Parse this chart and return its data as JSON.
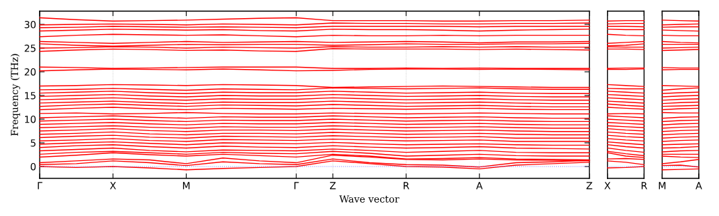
{
  "chart_data": [
    {
      "type": "line",
      "xlabel": "Wave vector",
      "ylabel": "Frequency (THz)",
      "categories": [
        "Γ",
        null,
        "X",
        null,
        "M",
        null,
        null,
        "Γ",
        "Z",
        null,
        "R",
        null,
        "A",
        null,
        null,
        "Z"
      ],
      "ylim": [
        -2.5,
        32.8
      ],
      "yticks": [
        0,
        5,
        10,
        15,
        20,
        25,
        30
      ],
      "grid": "x",
      "ref_lines": [
        {
          "axis": "y",
          "value": 0,
          "color": "#8080ff",
          "line_style": "dotted"
        }
      ],
      "series": [
        {
          "color": "#ff0000",
          "values": [
            0,
            -0.2,
            0,
            -0.3,
            -0.7,
            -0.4,
            -0.2,
            0,
            1.2,
            0.6,
            0,
            -0.1,
            -0.5,
            0.3,
            0.6,
            0.9
          ]
        },
        {
          "color": "#ff0000",
          "values": [
            0.4,
            0.6,
            1.2,
            0.8,
            0.2,
            1.0,
            0.6,
            0.4,
            1.6,
            0.8,
            0.4,
            0.3,
            -0.1,
            0.8,
            1.0,
            1.3
          ]
        },
        {
          "color": "#ff0000",
          "values": [
            0.8,
            1.2,
            1.6,
            1.4,
            0.6,
            1.8,
            1.2,
            0.8,
            2.4,
            2.0,
            1.5,
            1.4,
            1.6,
            1.4,
            1.3,
            1.2
          ]
        },
        {
          "color": "#ff0000",
          "values": [
            2.0,
            2.4,
            2.9,
            2.5,
            2.2,
            2.6,
            2.3,
            2.0,
            2.6,
            2.2,
            1.6,
            1.7,
            1.9,
            1.6,
            1.5,
            1.4
          ]
        },
        {
          "color": "#ff0000",
          "values": [
            2.6,
            3.0,
            3.2,
            2.9,
            2.6,
            3.0,
            2.8,
            2.7,
            3.2,
            2.8,
            2.2,
            2.4,
            2.6,
            2.3,
            2.2,
            2.2
          ]
        },
        {
          "color": "#ff0000",
          "values": [
            3.3,
            3.6,
            3.9,
            3.4,
            3.1,
            3.5,
            3.4,
            3.3,
            3.7,
            3.4,
            3.0,
            3.2,
            3.4,
            3.0,
            2.9,
            2.9
          ]
        },
        {
          "color": "#ff0000",
          "values": [
            4.0,
            4.4,
            4.6,
            4.2,
            3.9,
            4.3,
            4.1,
            4.0,
            4.4,
            4.1,
            3.9,
            4.0,
            4.2,
            3.9,
            3.8,
            3.7
          ]
        },
        {
          "color": "#ff0000",
          "values": [
            4.7,
            5.0,
            5.2,
            4.9,
            4.6,
            5.0,
            4.9,
            4.8,
            5.1,
            4.8,
            4.6,
            4.7,
            4.8,
            4.6,
            4.5,
            4.5
          ]
        },
        {
          "color": "#ff0000",
          "values": [
            5.4,
            5.6,
            5.9,
            5.5,
            5.3,
            5.7,
            5.6,
            5.5,
            5.8,
            5.6,
            5.4,
            5.5,
            5.6,
            5.3,
            5.3,
            5.3
          ]
        },
        {
          "color": "#ff0000",
          "values": [
            6.1,
            6.4,
            6.6,
            6.2,
            6.0,
            6.4,
            6.3,
            6.2,
            6.5,
            6.3,
            6.1,
            6.2,
            6.3,
            6.0,
            6.0,
            6.0
          ]
        },
        {
          "color": "#ff0000",
          "values": [
            6.8,
            7.0,
            7.3,
            6.9,
            6.7,
            7.0,
            7.0,
            6.9,
            7.2,
            7.0,
            6.8,
            6.9,
            7.0,
            6.8,
            6.7,
            6.7
          ]
        },
        {
          "color": "#ff0000",
          "values": [
            7.5,
            7.7,
            8.0,
            7.6,
            7.4,
            7.7,
            7.7,
            7.6,
            7.9,
            7.7,
            7.5,
            7.6,
            7.7,
            7.5,
            7.4,
            7.4
          ]
        },
        {
          "color": "#ff0000",
          "values": [
            8.2,
            8.4,
            8.6,
            8.3,
            8.1,
            8.4,
            8.3,
            8.3,
            8.6,
            8.4,
            8.2,
            8.3,
            8.4,
            8.2,
            8.1,
            8.1
          ]
        },
        {
          "color": "#ff0000",
          "values": [
            8.9,
            9.1,
            9.3,
            9.0,
            8.8,
            9.1,
            9.0,
            9.0,
            9.3,
            9.1,
            8.9,
            9.0,
            9.1,
            8.9,
            8.8,
            8.8
          ]
        },
        {
          "color": "#ff0000",
          "values": [
            9.6,
            9.8,
            10.0,
            9.7,
            9.5,
            9.8,
            9.7,
            9.7,
            10.0,
            9.8,
            9.6,
            9.7,
            9.8,
            9.6,
            9.5,
            9.5
          ]
        },
        {
          "color": "#ff0000",
          "values": [
            10.3,
            10.5,
            10.7,
            10.4,
            10.2,
            10.5,
            10.4,
            10.4,
            10.7,
            10.5,
            10.3,
            10.4,
            10.5,
            10.3,
            10.2,
            10.2
          ]
        },
        {
          "color": "#ff0000",
          "values": [
            11.2,
            11.3,
            11.1,
            11.2,
            11.4,
            11.2,
            11.1,
            11.1,
            11.3,
            11.2,
            11.1,
            11.2,
            11.3,
            11.2,
            11.1,
            11.1
          ]
        },
        {
          "color": "#ff0000",
          "values": [
            12.0,
            12.3,
            12.5,
            12.2,
            12.0,
            12.3,
            12.2,
            12.1,
            12.3,
            12.2,
            12.1,
            12.2,
            12.3,
            12.1,
            12.0,
            12.0
          ]
        },
        {
          "color": "#ff0000",
          "values": [
            12.7,
            13.0,
            13.2,
            12.9,
            12.7,
            13.0,
            12.9,
            12.8,
            13.1,
            12.9,
            12.7,
            12.8,
            12.9,
            12.7,
            12.6,
            12.6
          ]
        },
        {
          "color": "#ff0000",
          "values": [
            13.4,
            13.6,
            13.8,
            13.5,
            13.3,
            13.6,
            13.5,
            13.5,
            13.8,
            13.6,
            13.4,
            13.5,
            13.6,
            13.4,
            13.3,
            13.3
          ]
        },
        {
          "color": "#ff0000",
          "values": [
            14.1,
            14.3,
            14.5,
            14.2,
            14.0,
            14.3,
            14.2,
            14.2,
            14.5,
            14.3,
            14.1,
            14.2,
            14.3,
            14.1,
            14.0,
            14.0
          ]
        },
        {
          "color": "#ff0000",
          "values": [
            14.8,
            15.0,
            15.2,
            14.9,
            14.7,
            15.0,
            14.9,
            14.9,
            15.2,
            15.0,
            14.8,
            14.9,
            15.0,
            14.8,
            14.7,
            14.7
          ]
        },
        {
          "color": "#ff0000",
          "values": [
            15.5,
            15.7,
            15.9,
            15.6,
            15.4,
            15.7,
            15.6,
            15.6,
            15.9,
            15.7,
            15.5,
            15.6,
            15.7,
            15.5,
            15.4,
            15.4
          ]
        },
        {
          "color": "#ff0000",
          "values": [
            16.2,
            16.3,
            16.5,
            16.3,
            16.1,
            16.4,
            16.3,
            16.2,
            16.6,
            16.5,
            16.4,
            16.5,
            16.6,
            16.4,
            16.3,
            16.3
          ]
        },
        {
          "color": "#ff0000",
          "values": [
            17.0,
            17.1,
            17.3,
            17.2,
            17.1,
            17.3,
            17.2,
            17.1,
            16.7,
            16.8,
            16.9,
            17.0,
            16.9,
            16.8,
            16.7,
            16.7
          ]
        },
        {
          "color": "#ff0000",
          "values": [
            20.2,
            20.4,
            20.6,
            20.5,
            20.4,
            20.6,
            20.4,
            20.2,
            20.3,
            20.5,
            20.6,
            20.6,
            20.5,
            20.6,
            20.5,
            20.4
          ]
        },
        {
          "color": "#ff0000",
          "values": [
            21.0,
            20.9,
            20.7,
            20.8,
            20.9,
            21.0,
            21.0,
            21.0,
            20.7,
            20.7,
            20.8,
            20.7,
            20.8,
            20.7,
            20.7,
            20.7
          ]
        },
        {
          "color": "#ff0000",
          "values": [
            24.3,
            24.6,
            24.8,
            24.7,
            24.5,
            24.6,
            24.4,
            24.3,
            24.9,
            24.8,
            24.8,
            24.8,
            24.7,
            24.8,
            24.7,
            24.6
          ]
        },
        {
          "color": "#ff0000",
          "values": [
            25.0,
            25.1,
            25.3,
            25.2,
            25.0,
            25.2,
            25.1,
            25.0,
            25.3,
            25.2,
            25.2,
            25.3,
            25.2,
            25.3,
            25.2,
            25.2
          ]
        },
        {
          "color": "#ff0000",
          "values": [
            25.9,
            25.6,
            25.4,
            25.6,
            25.8,
            25.7,
            25.8,
            25.8,
            25.6,
            25.7,
            25.9,
            25.8,
            25.8,
            25.9,
            25.9,
            26.0
          ]
        },
        {
          "color": "#ff0000",
          "values": [
            26.4,
            26.2,
            26.0,
            26.2,
            26.4,
            26.2,
            26.3,
            26.4,
            26.2,
            26.3,
            26.4,
            26.3,
            26.1,
            26.3,
            26.3,
            26.4
          ]
        },
        {
          "color": "#ff0000",
          "values": [
            27.4,
            27.7,
            27.9,
            27.8,
            27.7,
            27.8,
            27.6,
            27.4,
            27.7,
            27.6,
            27.6,
            27.7,
            27.6,
            27.7,
            27.7,
            27.7
          ]
        },
        {
          "color": "#ff0000",
          "values": [
            28.6,
            28.8,
            29.0,
            28.9,
            28.8,
            28.9,
            28.7,
            28.6,
            29.0,
            28.9,
            28.9,
            28.8,
            28.6,
            28.8,
            28.9,
            29.0
          ]
        },
        {
          "color": "#ff0000",
          "values": [
            29.3,
            29.4,
            29.6,
            29.5,
            29.4,
            29.5,
            29.4,
            29.3,
            29.6,
            29.6,
            29.6,
            29.6,
            29.5,
            29.6,
            29.6,
            29.6
          ]
        },
        {
          "color": "#ff0000",
          "values": [
            29.9,
            30.0,
            30.1,
            30.0,
            29.9,
            30.1,
            30.0,
            29.9,
            30.3,
            30.2,
            30.2,
            30.1,
            30.1,
            30.2,
            30.2,
            30.3
          ]
        },
        {
          "color": "#ff0000",
          "values": [
            31.4,
            31.0,
            30.7,
            30.8,
            30.9,
            31.1,
            31.3,
            31.4,
            30.8,
            30.8,
            30.8,
            30.7,
            30.7,
            30.8,
            30.8,
            30.9
          ]
        }
      ]
    },
    {
      "type": "line",
      "categories": [
        "X",
        null,
        "R"
      ],
      "ylim": [
        -2.5,
        32.8
      ],
      "yticks": [
        0,
        5,
        10,
        15,
        20,
        25,
        30
      ],
      "tick_labels": "x",
      "ref_lines": [
        {
          "axis": "y",
          "value": 0,
          "color": "#8080ff",
          "line_style": "dotted"
        }
      ],
      "series": [
        {
          "color": "#ff0000",
          "values": [
            -0.3,
            -0.2,
            0
          ]
        },
        {
          "color": "#ff0000",
          "values": [
            1.2,
            0.9,
            0.4
          ]
        },
        {
          "color": "#ff0000",
          "values": [
            1.6,
            1.7,
            1.5
          ]
        },
        {
          "color": "#ff0000",
          "values": [
            2.9,
            2.2,
            1.9
          ]
        },
        {
          "color": "#ff0000",
          "values": [
            3.2,
            2.7,
            2.3
          ]
        },
        {
          "color": "#ff0000",
          "values": [
            3.9,
            3.4,
            3.0
          ]
        },
        {
          "color": "#ff0000",
          "values": [
            4.6,
            4.2,
            3.9
          ]
        },
        {
          "color": "#ff0000",
          "values": [
            5.2,
            4.9,
            4.6
          ]
        },
        {
          "color": "#ff0000",
          "values": [
            5.9,
            5.6,
            5.4
          ]
        },
        {
          "color": "#ff0000",
          "values": [
            6.6,
            6.3,
            6.1
          ]
        },
        {
          "color": "#ff0000",
          "values": [
            7.3,
            7.0,
            6.8
          ]
        },
        {
          "color": "#ff0000",
          "values": [
            8.0,
            7.7,
            7.5
          ]
        },
        {
          "color": "#ff0000",
          "values": [
            8.6,
            8.4,
            8.2
          ]
        },
        {
          "color": "#ff0000",
          "values": [
            9.3,
            9.1,
            8.9
          ]
        },
        {
          "color": "#ff0000",
          "values": [
            10.0,
            9.8,
            9.6
          ]
        },
        {
          "color": "#ff0000",
          "values": [
            10.7,
            10.5,
            10.3
          ]
        },
        {
          "color": "#ff0000",
          "values": [
            11.1,
            11.2,
            11.1
          ]
        },
        {
          "color": "#ff0000",
          "values": [
            12.5,
            12.3,
            12.1
          ]
        },
        {
          "color": "#ff0000",
          "values": [
            13.2,
            12.9,
            12.7
          ]
        },
        {
          "color": "#ff0000",
          "values": [
            13.8,
            13.6,
            13.4
          ]
        },
        {
          "color": "#ff0000",
          "values": [
            14.5,
            14.3,
            14.1
          ]
        },
        {
          "color": "#ff0000",
          "values": [
            15.2,
            15.0,
            14.8
          ]
        },
        {
          "color": "#ff0000",
          "values": [
            15.9,
            15.7,
            15.5
          ]
        },
        {
          "color": "#ff0000",
          "values": [
            16.5,
            16.4,
            16.4
          ]
        },
        {
          "color": "#ff0000",
          "values": [
            17.3,
            17.1,
            16.9
          ]
        },
        {
          "color": "#ff0000",
          "values": [
            20.5,
            20.5,
            20.6
          ]
        },
        {
          "color": "#ff0000",
          "values": [
            20.7,
            20.8,
            20.8
          ]
        },
        {
          "color": "#ff0000",
          "values": [
            24.8,
            24.8,
            24.7
          ]
        },
        {
          "color": "#ff0000",
          "values": [
            25.3,
            25.2,
            25.2
          ]
        },
        {
          "color": "#ff0000",
          "values": [
            25.5,
            25.6,
            25.9
          ]
        },
        {
          "color": "#ff0000",
          "values": [
            26.0,
            26.2,
            26.4
          ]
        },
        {
          "color": "#ff0000",
          "values": [
            27.9,
            27.7,
            27.6
          ]
        },
        {
          "color": "#ff0000",
          "values": [
            29.0,
            28.9,
            28.9
          ]
        },
        {
          "color": "#ff0000",
          "values": [
            29.6,
            29.6,
            29.5
          ]
        },
        {
          "color": "#ff0000",
          "values": [
            30.1,
            30.2,
            30.2
          ]
        },
        {
          "color": "#ff0000",
          "values": [
            30.7,
            30.8,
            30.8
          ]
        }
      ]
    },
    {
      "type": "line",
      "categories": [
        "M",
        null,
        "A"
      ],
      "ylim": [
        -2.5,
        32.8
      ],
      "yticks": [
        0,
        5,
        10,
        15,
        20,
        25,
        30
      ],
      "tick_labels": "x",
      "ref_lines": [
        {
          "axis": "y",
          "value": 0,
          "color": "#8080ff",
          "line_style": "dotted"
        }
      ],
      "series": [
        {
          "color": "#ff0000",
          "values": [
            -0.7,
            -0.6,
            -0.5
          ]
        },
        {
          "color": "#ff0000",
          "values": [
            0.2,
            0.3,
            -0.1
          ]
        },
        {
          "color": "#ff0000",
          "values": [
            0.6,
            1.0,
            1.5
          ]
        },
        {
          "color": "#ff0000",
          "values": [
            2.2,
            2.0,
            1.9
          ]
        },
        {
          "color": "#ff0000",
          "values": [
            2.6,
            2.6,
            2.6
          ]
        },
        {
          "color": "#ff0000",
          "values": [
            3.1,
            3.3,
            3.4
          ]
        },
        {
          "color": "#ff0000",
          "values": [
            3.9,
            4.0,
            4.2
          ]
        },
        {
          "color": "#ff0000",
          "values": [
            4.6,
            4.7,
            4.8
          ]
        },
        {
          "color": "#ff0000",
          "values": [
            5.3,
            5.5,
            5.6
          ]
        },
        {
          "color": "#ff0000",
          "values": [
            6.0,
            6.2,
            6.3
          ]
        },
        {
          "color": "#ff0000",
          "values": [
            6.7,
            6.9,
            7.0
          ]
        },
        {
          "color": "#ff0000",
          "values": [
            7.4,
            7.6,
            7.7
          ]
        },
        {
          "color": "#ff0000",
          "values": [
            8.1,
            8.3,
            8.4
          ]
        },
        {
          "color": "#ff0000",
          "values": [
            8.8,
            9.0,
            9.1
          ]
        },
        {
          "color": "#ff0000",
          "values": [
            9.5,
            9.7,
            9.8
          ]
        },
        {
          "color": "#ff0000",
          "values": [
            10.2,
            10.4,
            10.5
          ]
        },
        {
          "color": "#ff0000",
          "values": [
            11.4,
            11.3,
            11.3
          ]
        },
        {
          "color": "#ff0000",
          "values": [
            12.0,
            12.2,
            12.3
          ]
        },
        {
          "color": "#ff0000",
          "values": [
            12.7,
            12.8,
            12.9
          ]
        },
        {
          "color": "#ff0000",
          "values": [
            13.3,
            13.5,
            13.6
          ]
        },
        {
          "color": "#ff0000",
          "values": [
            14.0,
            14.2,
            14.3
          ]
        },
        {
          "color": "#ff0000",
          "values": [
            14.7,
            14.9,
            15.0
          ]
        },
        {
          "color": "#ff0000",
          "values": [
            15.4,
            15.6,
            15.7
          ]
        },
        {
          "color": "#ff0000",
          "values": [
            16.1,
            16.4,
            16.6
          ]
        },
        {
          "color": "#ff0000",
          "values": [
            17.1,
            17.0,
            16.9
          ]
        },
        {
          "color": "#ff0000",
          "values": [
            20.4,
            20.5,
            20.5
          ]
        },
        {
          "color": "#ff0000",
          "values": [
            20.9,
            20.8,
            20.8
          ]
        },
        {
          "color": "#ff0000",
          "values": [
            24.5,
            24.6,
            24.7
          ]
        },
        {
          "color": "#ff0000",
          "values": [
            25.0,
            25.1,
            25.2
          ]
        },
        {
          "color": "#ff0000",
          "values": [
            25.8,
            25.8,
            25.8
          ]
        },
        {
          "color": "#ff0000",
          "values": [
            26.4,
            26.2,
            26.1
          ]
        },
        {
          "color": "#ff0000",
          "values": [
            27.7,
            27.6,
            27.6
          ]
        },
        {
          "color": "#ff0000",
          "values": [
            28.8,
            28.7,
            28.6
          ]
        },
        {
          "color": "#ff0000",
          "values": [
            29.4,
            29.5,
            29.5
          ]
        },
        {
          "color": "#ff0000",
          "values": [
            29.9,
            30.0,
            30.1
          ]
        },
        {
          "color": "#ff0000",
          "values": [
            30.9,
            30.8,
            30.7
          ]
        }
      ]
    }
  ]
}
